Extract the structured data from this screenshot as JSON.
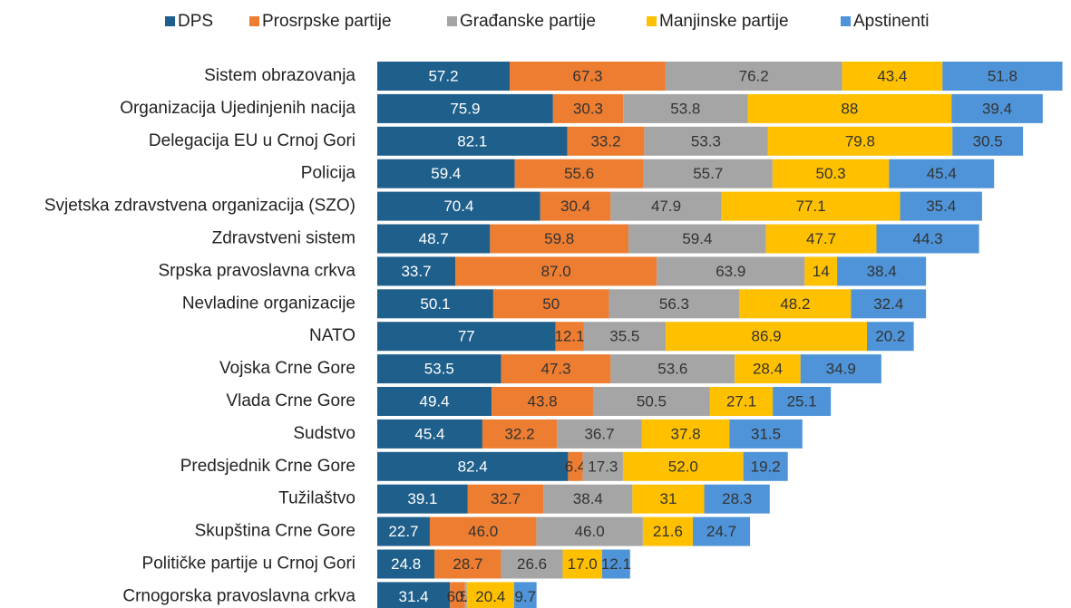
{
  "chart_data": {
    "type": "stacked-bar-horizontal",
    "categories": [
      "Sistem obrazovanja",
      "Organizacija Ujedinjenih nacija",
      "Delegacija EU u Crnoj Gori",
      "Policija",
      "Svjetska zdravstvena organizacija (SZO)",
      "Zdravstveni sistem",
      "Srpska pravoslavna crkva",
      "Nevladine organizacije",
      "NATO",
      "Vojska Crne Gore",
      "Vlada Crne Gore",
      "Sudstvo",
      "Predsjednik Crne Gore",
      "Tužilaštvo",
      "Skupština Crne Gore",
      "Političke partije u Crnoj Gori",
      "Crnogorska pravoslavna crkva"
    ],
    "series": [
      {
        "name": "DPS",
        "color": "#1f5f8b",
        "values": [
          57.2,
          75.9,
          82.1,
          59.4,
          70.4,
          48.7,
          33.7,
          50.1,
          77,
          53.5,
          49.4,
          45.4,
          82.4,
          39.1,
          22.7,
          24.8,
          31.4
        ],
        "value_labels": [
          "57.2",
          "75.9",
          "82.1",
          "59.4",
          "70.4",
          "48.7",
          "33.7",
          "50.1",
          "77",
          "53.5",
          "49.4",
          "45.4",
          "82.4",
          "39.1",
          "22.7",
          "24.8",
          "31.4"
        ]
      },
      {
        "name": "Prosrpske partije",
        "color": "#ed7d31",
        "values": [
          67.3,
          30.3,
          33.2,
          55.6,
          30.4,
          59.8,
          87,
          50,
          12.1,
          47.3,
          43.8,
          32.2,
          6.4,
          32.7,
          46,
          28.7,
          6.5
        ],
        "value_labels": [
          "67.3",
          "30.3",
          "33.2",
          "55.6",
          "30.4",
          "59.8",
          "87.0",
          "50",
          "12.1",
          "47.3",
          "43.8",
          "32.2",
          "6.4",
          "32.7",
          "46.0",
          "28.7",
          "6.5"
        ]
      },
      {
        "name": "Građanske partije",
        "color": "#a5a5a5",
        "values": [
          76.2,
          53.8,
          53.3,
          55.7,
          47.9,
          59.4,
          63.9,
          56.3,
          35.5,
          53.6,
          50.5,
          36.7,
          17.3,
          38.4,
          46,
          26.6,
          0.8
        ],
        "value_labels": [
          "76.2",
          "53.8",
          "53.3",
          "55.7",
          "47.9",
          "59.4",
          "63.9",
          "56.3",
          "35.5",
          "53.6",
          "50.5",
          "36.7",
          "17.3",
          "38.4",
          "46.0",
          "26.6",
          "0.8"
        ]
      },
      {
        "name": "Manjinske partije",
        "color": "#ffc000",
        "values": [
          43.4,
          88,
          79.8,
          50.3,
          77.1,
          47.7,
          14,
          48.2,
          86.9,
          28.4,
          27.1,
          37.8,
          52,
          31,
          21.6,
          17,
          20.4
        ],
        "value_labels": [
          "43.4",
          "88",
          "79.8",
          "50.3",
          "77.1",
          "47.7",
          "14",
          "48.2",
          "86.9",
          "28.4",
          "27.1",
          "37.8",
          "52.0",
          "31",
          "21.6",
          "17.0",
          "20.4"
        ]
      },
      {
        "name": "Apstinenti",
        "color": "#4f94d8",
        "values": [
          51.8,
          39.4,
          30.5,
          45.4,
          35.4,
          44.3,
          38.4,
          32.4,
          20.2,
          34.9,
          25.1,
          31.5,
          19.2,
          28.3,
          24.7,
          12.1,
          9.7
        ],
        "value_labels": [
          "51.8",
          "39.4",
          "30.5",
          "45.4",
          "35.4",
          "44.3",
          "38.4",
          "32.4",
          "20.2",
          "34.9",
          "25.1",
          "31.5",
          "19.2",
          "28.3",
          "24.7",
          "12.1",
          "9.7"
        ]
      }
    ],
    "xlim": [
      0,
      300
    ],
    "legend": "top"
  }
}
